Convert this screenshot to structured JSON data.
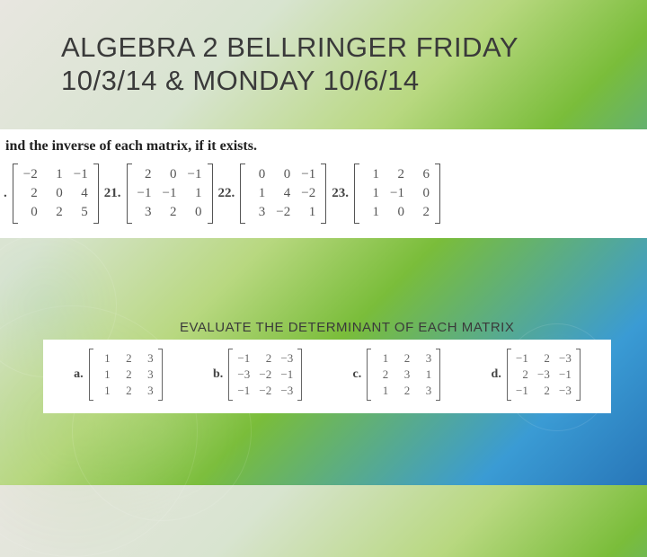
{
  "title": "ALGEBRA 2 BELLRINGER FRIDAY 10/3/14 & MONDAY 10/6/14",
  "section1": {
    "instruction": "ind the inverse of each matrix, if it exists.",
    "problems": [
      {
        "label": ".",
        "rows": [
          [
            "−2",
            "1",
            "−1"
          ],
          [
            "2",
            "0",
            "4"
          ],
          [
            "0",
            "2",
            "5"
          ]
        ]
      },
      {
        "label": "21.",
        "rows": [
          [
            "2",
            "0",
            "−1"
          ],
          [
            "−1",
            "−1",
            "1"
          ],
          [
            "3",
            "2",
            "0"
          ]
        ]
      },
      {
        "label": "22.",
        "rows": [
          [
            "0",
            "0",
            "−1"
          ],
          [
            "1",
            "4",
            "−2"
          ],
          [
            "3",
            "−2",
            "1"
          ]
        ]
      },
      {
        "label": "23.",
        "rows": [
          [
            "1",
            "2",
            "6"
          ],
          [
            "1",
            "−1",
            "0"
          ],
          [
            "1",
            "0",
            "2"
          ]
        ]
      }
    ]
  },
  "section2": {
    "instruction": "EVALUATE THE DETERMINANT OF EACH MATRIX",
    "problems": [
      {
        "label": "a.",
        "rows": [
          [
            "1",
            "2",
            "3"
          ],
          [
            "1",
            "2",
            "3"
          ],
          [
            "1",
            "2",
            "3"
          ]
        ]
      },
      {
        "label": "b.",
        "rows": [
          [
            "−1",
            "2",
            "−3"
          ],
          [
            "−3",
            "−2",
            "−1"
          ],
          [
            "−1",
            "−2",
            "−3"
          ]
        ]
      },
      {
        "label": "c.",
        "rows": [
          [
            "1",
            "2",
            "3"
          ],
          [
            "2",
            "3",
            "1"
          ],
          [
            "1",
            "2",
            "3"
          ]
        ]
      },
      {
        "label": "d.",
        "rows": [
          [
            "−1",
            "2",
            "−3"
          ],
          [
            "2",
            "−3",
            "−1"
          ],
          [
            "−1",
            "2",
            "−3"
          ]
        ]
      }
    ]
  },
  "colors": {
    "text_dark": "#3a3a3a",
    "matrix_text": "#555555",
    "white": "#ffffff"
  }
}
